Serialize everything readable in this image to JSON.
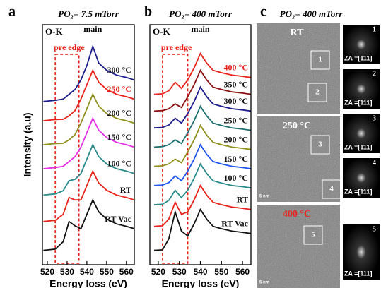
{
  "chart_data": [
    {
      "type": "line",
      "panel_label": "a",
      "title": "PO₂= 7.5 mTorr",
      "y_label": "Intensity (a.u)",
      "x_label": "Energy loss (eV)",
      "annotations": {
        "edge": "O-K",
        "peak": "main",
        "pre_edge": "pre edge"
      },
      "pre_edge_range": [
        524,
        536
      ],
      "pre_edge_color": "#e8241c",
      "xlim": [
        517.5,
        564
      ],
      "xticks": [
        520,
        530,
        540,
        550,
        560
      ],
      "ylim": [
        0,
        10
      ],
      "x": [
        518,
        524,
        528,
        531,
        534,
        537,
        540,
        543,
        546,
        550,
        555,
        560,
        564
      ],
      "series": [
        {
          "name": "RT Vac",
          "color": "#111111",
          "label_color": "#111111",
          "values": [
            0.6,
            0.65,
            0.96,
            1.8,
            1.62,
            1.5,
            2.1,
            2.7,
            2.2,
            1.9,
            1.7,
            1.6,
            1.5
          ]
        },
        {
          "name": "RT",
          "color": "#e8241c",
          "label_color": "#111111",
          "values": [
            1.8,
            1.85,
            2.1,
            2.8,
            2.7,
            2.7,
            3.3,
            3.9,
            3.4,
            3.1,
            2.9,
            2.8,
            2.7
          ]
        },
        {
          "name": "100 °C",
          "color": "#2a8a8a",
          "label_color": "#111111",
          "values": [
            2.9,
            2.95,
            3.08,
            3.5,
            3.56,
            3.8,
            4.4,
            5.0,
            4.5,
            4.2,
            4.0,
            3.9,
            3.8
          ]
        },
        {
          "name": "150 °C",
          "color": "#e62ee6",
          "label_color": "#111111",
          "values": [
            4.0,
            4.05,
            4.1,
            4.3,
            4.5,
            4.9,
            5.5,
            6.1,
            5.6,
            5.3,
            5.1,
            5.0,
            4.9
          ]
        },
        {
          "name": "200 °C",
          "color": "#8f8f1e",
          "label_color": "#111111",
          "values": [
            5.0,
            5.05,
            5.06,
            5.2,
            5.42,
            5.9,
            6.5,
            7.1,
            6.6,
            6.3,
            6.1,
            6.0,
            5.9
          ]
        },
        {
          "name": "250 °C",
          "color": "#e8241c",
          "label_color": "#e8241c",
          "values": [
            6.0,
            6.05,
            6.06,
            6.2,
            6.42,
            6.9,
            7.5,
            8.1,
            7.6,
            7.3,
            7.1,
            7.0,
            6.9
          ]
        },
        {
          "name": "300 °C",
          "color": "#1c1c8c",
          "label_color": "#111111",
          "values": [
            6.8,
            6.85,
            6.9,
            7.1,
            7.3,
            7.7,
            8.3,
            9.1,
            8.4,
            8.1,
            7.9,
            7.8,
            7.7
          ]
        }
      ]
    },
    {
      "type": "line",
      "panel_label": "b",
      "title": "PO₂= 400 mTorr",
      "x_label": "Energy loss (eV)",
      "annotations": {
        "edge": "O-K",
        "peak": "main",
        "pre_edge": "pre edge"
      },
      "pre_edge_range": [
        522,
        534
      ],
      "pre_edge_color": "#e8241c",
      "xlim": [
        516,
        564
      ],
      "xticks": [
        520,
        530,
        540,
        550,
        560
      ],
      "ylim": [
        0,
        10
      ],
      "x": [
        518,
        522,
        525,
        528,
        531,
        534,
        537,
        540,
        543,
        546,
        550,
        555,
        560,
        564
      ],
      "series": [
        {
          "name": "RT Vac",
          "color": "#111111",
          "label_color": "#111111",
          "values": [
            0.6,
            0.62,
            1.08,
            2.2,
            1.4,
            1.2,
            1.7,
            2.3,
            1.9,
            1.6,
            1.5,
            1.4,
            1.35,
            1.3
          ]
        },
        {
          "name": "RT",
          "color": "#e8241c",
          "label_color": "#111111",
          "values": [
            1.6,
            1.62,
            1.9,
            2.6,
            2.1,
            2.2,
            2.7,
            3.3,
            2.9,
            2.6,
            2.5,
            2.4,
            2.35,
            2.3
          ]
        },
        {
          "name": "100 °C",
          "color": "#2a8a8a",
          "label_color": "#111111",
          "values": [
            2.5,
            2.52,
            2.68,
            3.1,
            2.8,
            3.1,
            3.6,
            4.2,
            3.8,
            3.5,
            3.4,
            3.3,
            3.25,
            3.2
          ]
        },
        {
          "name": "150 °C",
          "color": "#2255ee",
          "label_color": "#111111",
          "values": [
            3.3,
            3.32,
            3.42,
            3.7,
            3.5,
            3.9,
            4.4,
            5.0,
            4.6,
            4.3,
            4.2,
            4.1,
            4.05,
            4.0
          ]
        },
        {
          "name": "200 °C",
          "color": "#8f8f1e",
          "label_color": "#111111",
          "values": [
            4.1,
            4.12,
            4.2,
            4.4,
            4.25,
            4.7,
            5.2,
            5.8,
            5.4,
            5.1,
            5.0,
            4.9,
            4.85,
            4.8
          ]
        },
        {
          "name": "250 °C",
          "color": "#1f7070",
          "label_color": "#111111",
          "values": [
            4.9,
            4.92,
            5.0,
            5.2,
            5.05,
            5.5,
            6.0,
            6.6,
            6.2,
            5.9,
            5.8,
            5.7,
            5.65,
            5.6
          ]
        },
        {
          "name": "300 °C",
          "color": "#1c1c8c",
          "label_color": "#111111",
          "values": [
            5.7,
            5.72,
            5.82,
            6.1,
            5.9,
            6.3,
            6.8,
            7.4,
            7.0,
            6.7,
            6.6,
            6.5,
            6.45,
            6.4
          ]
        },
        {
          "name": "350 °C",
          "color": "#8c1010",
          "label_color": "#111111",
          "values": [
            6.4,
            6.42,
            6.5,
            6.7,
            6.55,
            7.0,
            7.5,
            8.1,
            7.7,
            7.4,
            7.3,
            7.2,
            7.15,
            7.1
          ]
        },
        {
          "name": "400 °C",
          "color": "#e8241c",
          "label_color": "#e8241c",
          "values": [
            7.1,
            7.12,
            7.25,
            7.6,
            7.35,
            7.7,
            8.2,
            8.8,
            8.4,
            8.1,
            8.0,
            7.9,
            7.85,
            7.8
          ]
        }
      ]
    }
  ],
  "panel_c": {
    "panel_label": "c",
    "title": "PO₂= 400 mTorr",
    "images": [
      {
        "label": "RT",
        "boxes": [
          "1",
          "2"
        ],
        "scale": ""
      },
      {
        "label": "250 °C",
        "boxes": [
          "3",
          "4"
        ],
        "scale": "5 nm"
      },
      {
        "label": "400 °C",
        "boxes": [
          "5"
        ],
        "scale": "5 nm"
      }
    ],
    "fft": [
      {
        "number": "1",
        "zone_axis": "ZA =[111]"
      },
      {
        "number": "2",
        "zone_axis": "ZA =[111]"
      },
      {
        "number": "3",
        "zone_axis": "ZA =[111]"
      },
      {
        "number": "4",
        "zone_axis": "ZA =[111]"
      },
      {
        "number": "5",
        "zone_axis": "ZA =[111]"
      }
    ]
  }
}
